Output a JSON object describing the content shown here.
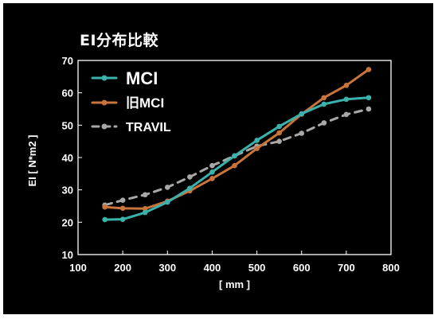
{
  "chart_data": {
    "type": "line",
    "title": "EI分布比較",
    "xlabel": "[ mm ]",
    "ylabel": "EI [ N*m2 ]",
    "xlim": [
      100,
      800
    ],
    "ylim": [
      10,
      70
    ],
    "xticks": [
      100,
      200,
      300,
      400,
      500,
      600,
      700,
      800
    ],
    "yticks": [
      10,
      20,
      30,
      40,
      50,
      60,
      70
    ],
    "grid": false,
    "legend": "top-left",
    "series": [
      {
        "name": "MCI",
        "color": "#3bb3ad",
        "style": "solid",
        "marker": "circle",
        "x": [
          160,
          200,
          250,
          300,
          350,
          400,
          450,
          500,
          550,
          600,
          650,
          700,
          750
        ],
        "y": [
          20.8,
          20.9,
          23.0,
          26.2,
          30.5,
          35.5,
          40.5,
          45.3,
          49.6,
          53.5,
          56.5,
          58.0,
          58.5
        ]
      },
      {
        "name": "旧MCI",
        "color": "#c8743a",
        "style": "solid",
        "marker": "circle",
        "x": [
          160,
          200,
          250,
          300,
          350,
          400,
          450,
          500,
          550,
          600,
          650,
          700,
          750
        ],
        "y": [
          24.7,
          24.3,
          24.2,
          26.5,
          29.7,
          33.5,
          37.5,
          42.8,
          47.6,
          53.4,
          58.5,
          62.3,
          67.2
        ]
      },
      {
        "name": "TRAVIL",
        "color": "#a8a8a8",
        "style": "dashed",
        "marker": "circle",
        "x": [
          160,
          200,
          250,
          300,
          350,
          400,
          450,
          500,
          550,
          600,
          650,
          700,
          750
        ],
        "y": [
          25.3,
          26.8,
          28.5,
          30.8,
          34.0,
          37.5,
          40.5,
          43.5,
          45.0,
          47.5,
          50.7,
          53.3,
          55.0
        ]
      }
    ]
  }
}
